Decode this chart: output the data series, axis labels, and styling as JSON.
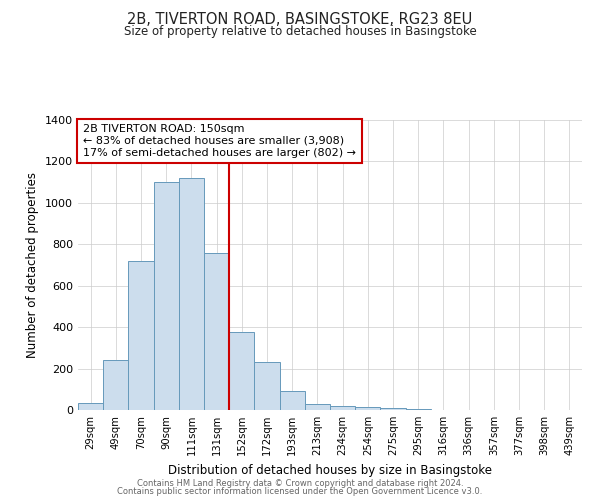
{
  "title": "2B, TIVERTON ROAD, BASINGSTOKE, RG23 8EU",
  "subtitle": "Size of property relative to detached houses in Basingstoke",
  "xlabel": "Distribution of detached houses by size in Basingstoke",
  "ylabel": "Number of detached properties",
  "bar_color": "#ccdded",
  "bar_edge_color": "#6699bb",
  "categories": [
    "29sqm",
    "49sqm",
    "70sqm",
    "90sqm",
    "111sqm",
    "131sqm",
    "152sqm",
    "172sqm",
    "193sqm",
    "213sqm",
    "234sqm",
    "254sqm",
    "275sqm",
    "295sqm",
    "316sqm",
    "336sqm",
    "357sqm",
    "377sqm",
    "398sqm",
    "439sqm"
  ],
  "values": [
    35,
    240,
    720,
    1100,
    1120,
    760,
    375,
    230,
    90,
    30,
    20,
    15,
    10,
    5,
    2,
    1,
    1,
    0,
    0,
    0
  ],
  "vline_index": 6,
  "vline_color": "#cc0000",
  "ylim": [
    0,
    1400
  ],
  "yticks": [
    0,
    200,
    400,
    600,
    800,
    1000,
    1200,
    1400
  ],
  "annotation_line1": "2B TIVERTON ROAD: 150sqm",
  "annotation_line2": "← 83% of detached houses are smaller (3,908)",
  "annotation_line3": "17% of semi-detached houses are larger (802) →",
  "annotation_box_color": "#ffffff",
  "annotation_box_edge": "#cc0000",
  "footer_line1": "Contains HM Land Registry data © Crown copyright and database right 2024.",
  "footer_line2": "Contains public sector information licensed under the Open Government Licence v3.0.",
  "background_color": "#ffffff",
  "figsize": [
    6.0,
    5.0
  ],
  "dpi": 100
}
